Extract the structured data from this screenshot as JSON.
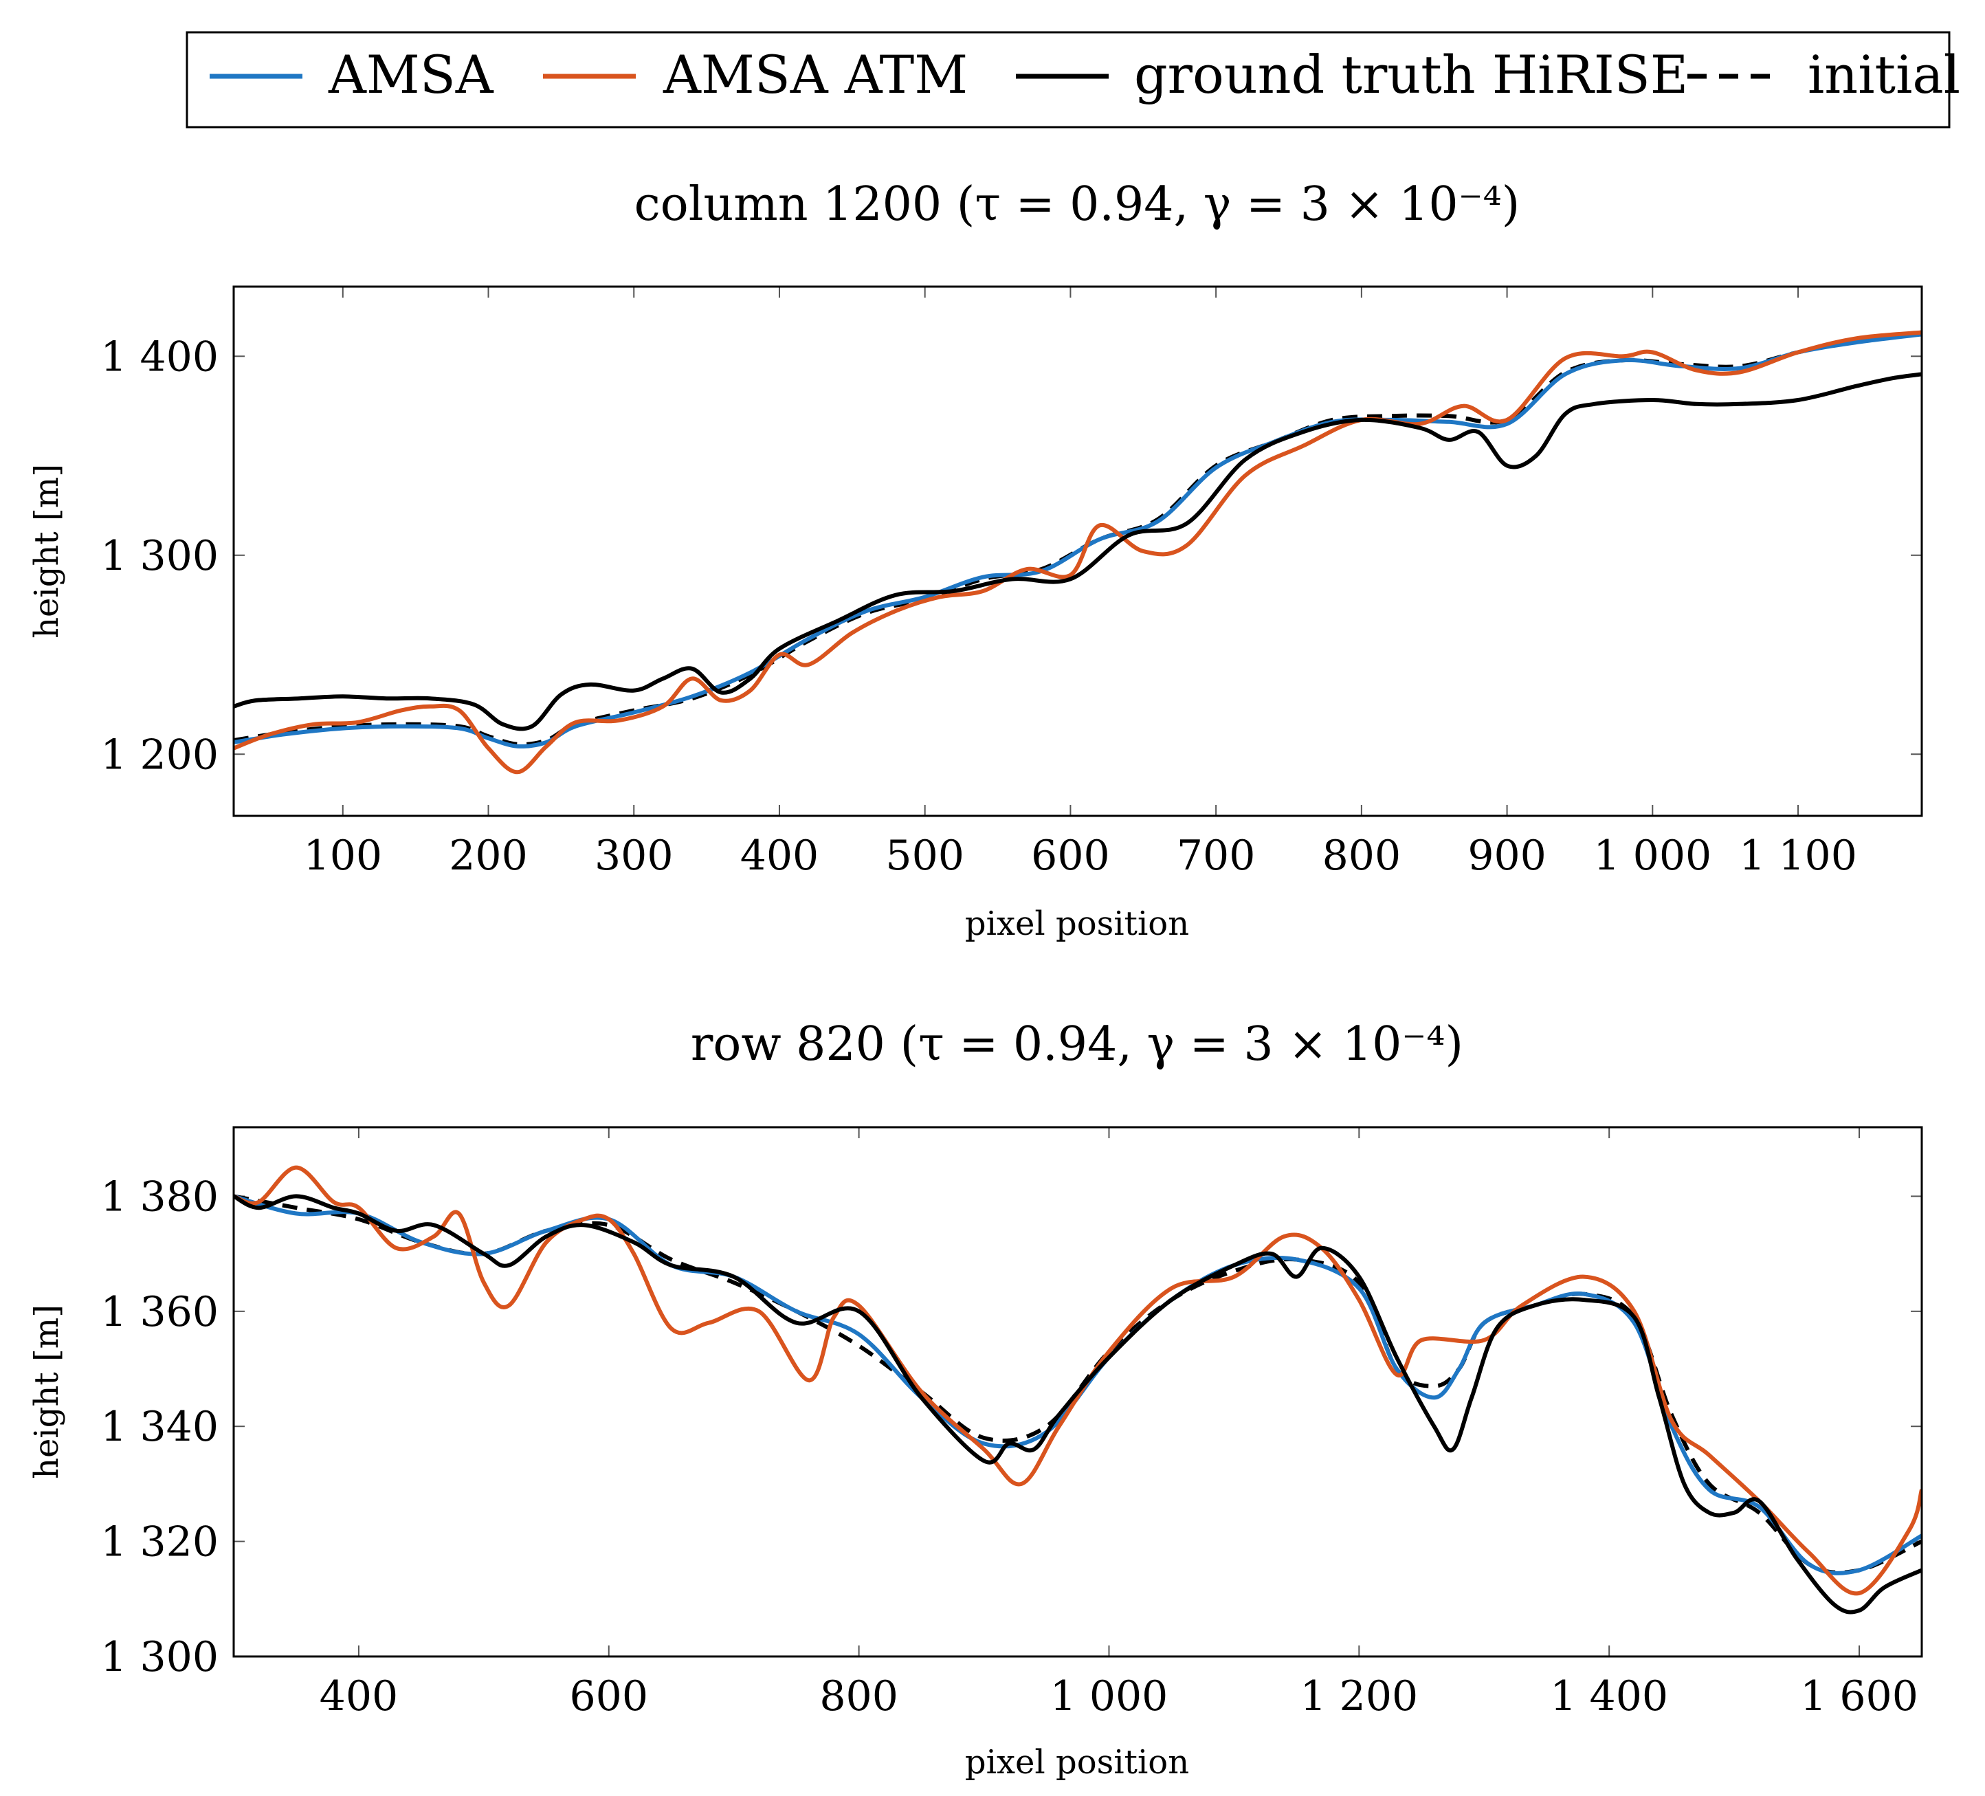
{
  "legend": {
    "entries": [
      {
        "label": "AMSA",
        "color": "#1f77c4",
        "style": "solid"
      },
      {
        "label": "AMSA ATM",
        "color": "#d9541e",
        "style": "solid"
      },
      {
        "label": "ground truth HiRISE",
        "color": "#000000",
        "style": "solid"
      },
      {
        "label": "initial",
        "color": "#000000",
        "style": "dashed"
      }
    ]
  },
  "chart_data": [
    {
      "type": "line",
      "title": "column 1200 (τ = 0.94, γ = 3 × 10⁻⁴)",
      "xlabel": "pixel position",
      "ylabel": "height [m]",
      "xlim": [
        25,
        1185
      ],
      "ylim": [
        1169,
        1435
      ],
      "xticks": [
        100,
        200,
        300,
        400,
        500,
        600,
        700,
        800,
        900,
        1000,
        1100
      ],
      "xtick_labels": [
        "100",
        "200",
        "300",
        "400",
        "500",
        "600",
        "700",
        "800",
        "900",
        "1 000",
        "1 100"
      ],
      "yticks": [
        1200,
        1300,
        1400
      ],
      "ytick_labels": [
        "1 200",
        "1 300",
        "1 400"
      ],
      "series": [
        {
          "name": "initial",
          "color": "#000000",
          "dashed": true,
          "x": [
            25,
            60,
            100,
            140,
            180,
            200,
            220,
            240,
            260,
            300,
            340,
            380,
            420,
            460,
            500,
            540,
            580,
            620,
            660,
            700,
            740,
            780,
            820,
            860,
            900,
            940,
            980,
            1020,
            1060,
            1100,
            1140,
            1185
          ],
          "y": [
            1207,
            1211,
            1214,
            1215,
            1214,
            1209,
            1205,
            1207,
            1215,
            1222,
            1228,
            1240,
            1257,
            1271,
            1278,
            1288,
            1293,
            1308,
            1318,
            1345,
            1357,
            1368,
            1370,
            1370,
            1368,
            1392,
            1398,
            1396,
            1395,
            1402,
            1408,
            1412
          ]
        },
        {
          "name": "AMSA",
          "color": "#1f77c4",
          "dashed": false,
          "x": [
            25,
            60,
            100,
            140,
            180,
            200,
            220,
            240,
            260,
            300,
            340,
            380,
            420,
            460,
            500,
            540,
            580,
            620,
            660,
            700,
            740,
            780,
            820,
            860,
            900,
            940,
            980,
            1020,
            1060,
            1100,
            1140,
            1185
          ],
          "y": [
            1206,
            1210,
            1213,
            1214,
            1213,
            1208,
            1204,
            1206,
            1214,
            1221,
            1229,
            1241,
            1258,
            1272,
            1279,
            1289,
            1292,
            1308,
            1317,
            1344,
            1357,
            1367,
            1368,
            1367,
            1366,
            1391,
            1398,
            1395,
            1394,
            1402,
            1407,
            1411
          ]
        },
        {
          "name": "AMSA ATM",
          "color": "#d9541e",
          "dashed": false,
          "x": [
            25,
            50,
            80,
            110,
            140,
            160,
            180,
            200,
            220,
            240,
            260,
            290,
            320,
            340,
            360,
            380,
            400,
            420,
            450,
            480,
            510,
            540,
            570,
            600,
            620,
            650,
            680,
            720,
            760,
            800,
            840,
            870,
            900,
            940,
            980,
            1000,
            1030,
            1060,
            1100,
            1140,
            1185
          ],
          "y": [
            1203,
            1210,
            1215,
            1216,
            1222,
            1224,
            1222,
            1203,
            1191,
            1204,
            1216,
            1217,
            1224,
            1238,
            1227,
            1232,
            1250,
            1245,
            1261,
            1272,
            1279,
            1282,
            1293,
            1290,
            1315,
            1302,
            1305,
            1340,
            1355,
            1368,
            1366,
            1375,
            1368,
            1399,
            1400,
            1402,
            1393,
            1392,
            1402,
            1409,
            1412
          ]
        },
        {
          "name": "ground truth HiRISE",
          "color": "#000000",
          "dashed": false,
          "x": [
            25,
            40,
            70,
            100,
            130,
            160,
            190,
            210,
            230,
            250,
            270,
            300,
            320,
            340,
            360,
            380,
            400,
            440,
            480,
            520,
            560,
            600,
            640,
            680,
            720,
            760,
            800,
            840,
            860,
            880,
            900,
            920,
            940,
            960,
            1000,
            1030,
            1060,
            1100,
            1140,
            1165,
            1185
          ],
          "y": [
            1224,
            1227,
            1228,
            1229,
            1228,
            1228,
            1225,
            1215,
            1214,
            1230,
            1235,
            1232,
            1238,
            1243,
            1231,
            1238,
            1253,
            1267,
            1280,
            1282,
            1288,
            1288,
            1310,
            1316,
            1348,
            1362,
            1368,
            1364,
            1358,
            1362,
            1345,
            1350,
            1371,
            1376,
            1378,
            1376,
            1376,
            1378,
            1385,
            1389,
            1391
          ]
        }
      ]
    },
    {
      "type": "line",
      "title": "row 820 (τ = 0.94, γ = 3 × 10⁻⁴)",
      "xlabel": "pixel position",
      "ylabel": "height [m]",
      "xlim": [
        300,
        1650
      ],
      "ylim": [
        1300,
        1392
      ],
      "xticks": [
        400,
        600,
        800,
        1000,
        1200,
        1400,
        1600
      ],
      "xtick_labels": [
        "400",
        "600",
        "800",
        "1 000",
        "1 200",
        "1 400",
        "1 600"
      ],
      "yticks": [
        1300,
        1320,
        1340,
        1360,
        1380
      ],
      "ytick_labels": [
        "1 300",
        "1 320",
        "1 340",
        "1 360",
        "1 380"
      ],
      "series": [
        {
          "name": "initial",
          "color": "#000000",
          "dashed": true,
          "x": [
            300,
            350,
            400,
            450,
            500,
            550,
            600,
            650,
            700,
            750,
            800,
            850,
            900,
            950,
            1000,
            1050,
            1100,
            1150,
            1200,
            1230,
            1260,
            1280,
            1300,
            1340,
            1380,
            1420,
            1450,
            1480,
            1520,
            1560,
            1600,
            1650
          ],
          "y": [
            1380,
            1378,
            1376,
            1372,
            1370,
            1374,
            1375,
            1369,
            1365,
            1360,
            1354,
            1346,
            1338,
            1340,
            1353,
            1362,
            1367,
            1369,
            1365,
            1350,
            1347,
            1350,
            1358,
            1361,
            1363,
            1359,
            1342,
            1330,
            1325,
            1316,
            1315,
            1320
          ]
        },
        {
          "name": "AMSA",
          "color": "#1f77c4",
          "dashed": false,
          "x": [
            300,
            350,
            400,
            450,
            500,
            550,
            600,
            650,
            700,
            750,
            800,
            850,
            900,
            950,
            1000,
            1050,
            1100,
            1150,
            1200,
            1230,
            1260,
            1280,
            1300,
            1340,
            1380,
            1420,
            1450,
            1480,
            1520,
            1560,
            1600,
            1650
          ],
          "y": [
            1380,
            1377,
            1377,
            1372,
            1370,
            1374,
            1376,
            1368,
            1366,
            1360,
            1356,
            1345,
            1337,
            1339,
            1352,
            1362,
            1368,
            1369,
            1364,
            1350,
            1345,
            1350,
            1358,
            1361,
            1363,
            1358,
            1340,
            1329,
            1326,
            1316,
            1315,
            1321
          ]
        },
        {
          "name": "AMSA ATM",
          "color": "#d9541e",
          "dashed": false,
          "x": [
            300,
            320,
            350,
            380,
            400,
            430,
            460,
            480,
            500,
            520,
            550,
            580,
            600,
            620,
            650,
            680,
            720,
            760,
            780,
            800,
            850,
            900,
            930,
            960,
            1000,
            1050,
            1100,
            1140,
            1170,
            1200,
            1230,
            1250,
            1300,
            1330,
            1380,
            1420,
            1450,
            1480,
            1520,
            1560,
            1600,
            1640,
            1650
          ],
          "y": [
            1380,
            1379,
            1385,
            1379,
            1378,
            1371,
            1373,
            1377,
            1365,
            1361,
            1372,
            1376,
            1376,
            1370,
            1357,
            1358,
            1360,
            1348,
            1359,
            1361,
            1346,
            1336,
            1330,
            1340,
            1353,
            1364,
            1366,
            1373,
            1371,
            1362,
            1349,
            1355,
            1355,
            1361,
            1366,
            1360,
            1341,
            1335,
            1327,
            1318,
            1311,
            1322,
            1329
          ]
        },
        {
          "name": "ground truth HiRISE",
          "color": "#000000",
          "dashed": false,
          "x": [
            300,
            320,
            350,
            380,
            400,
            430,
            460,
            500,
            520,
            550,
            580,
            620,
            650,
            700,
            750,
            800,
            850,
            900,
            920,
            940,
            960,
            1000,
            1050,
            1100,
            1130,
            1150,
            1170,
            1200,
            1230,
            1260,
            1275,
            1290,
            1310,
            1340,
            1380,
            1420,
            1440,
            1460,
            1480,
            1500,
            1520,
            1550,
            1580,
            1600,
            1620,
            1650
          ],
          "y": [
            1380,
            1378,
            1380,
            1378,
            1377,
            1374,
            1375,
            1370,
            1368,
            1373,
            1375,
            1372,
            1368,
            1366,
            1358,
            1360,
            1345,
            1334,
            1337,
            1336,
            1342,
            1352,
            1362,
            1368,
            1370,
            1366,
            1371,
            1366,
            1352,
            1340,
            1336,
            1345,
            1357,
            1361,
            1362,
            1359,
            1345,
            1330,
            1325,
            1325,
            1327,
            1317,
            1309,
            1308,
            1312,
            1315
          ]
        }
      ]
    }
  ]
}
